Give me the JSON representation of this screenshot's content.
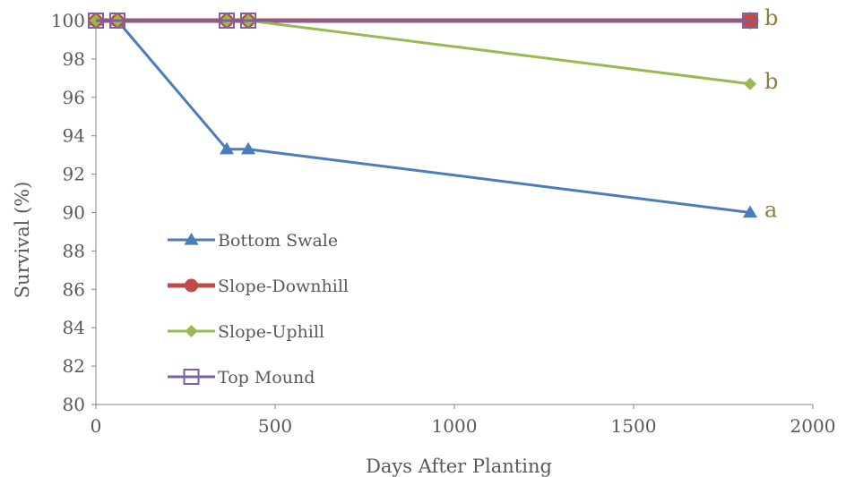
{
  "chart_data": {
    "type": "line",
    "xlabel": "Days After Planting",
    "ylabel": "Survival (%)",
    "xlim": [
      0,
      2000
    ],
    "ylim": [
      80,
      100
    ],
    "xticks": [
      0,
      500,
      1000,
      1500,
      2000
    ],
    "yticks": [
      80,
      82,
      84,
      86,
      88,
      90,
      92,
      94,
      96,
      98,
      100
    ],
    "grid": false,
    "legend_position": "lower-left",
    "series": [
      {
        "name": "Bottom Swale",
        "color": "#4a7ebb",
        "marker": "triangle",
        "x": [
          0,
          60,
          365,
          425,
          1825
        ],
        "y": [
          100,
          100,
          93.3,
          93.3,
          90
        ]
      },
      {
        "name": "Slope-Downhill",
        "color": "#be4b48",
        "marker": "circle",
        "x": [
          0,
          60,
          365,
          425,
          1825
        ],
        "y": [
          100,
          100,
          100,
          100,
          100
        ]
      },
      {
        "name": "Slope-Uphill",
        "color": "#98b954",
        "marker": "diamond",
        "x": [
          0,
          60,
          365,
          425,
          1825
        ],
        "y": [
          100,
          100,
          100,
          100,
          96.7
        ]
      },
      {
        "name": "Top Mound",
        "color": "#7d60a0",
        "marker": "square-open",
        "x": [
          0,
          60,
          365,
          425,
          1825
        ],
        "y": [
          100,
          100,
          100,
          100,
          100
        ]
      }
    ],
    "annotations": [
      {
        "text": "b",
        "x": 1825,
        "y": 100
      },
      {
        "text": "b",
        "x": 1825,
        "y": 96.7
      },
      {
        "text": "a",
        "x": 1825,
        "y": 90
      }
    ]
  }
}
